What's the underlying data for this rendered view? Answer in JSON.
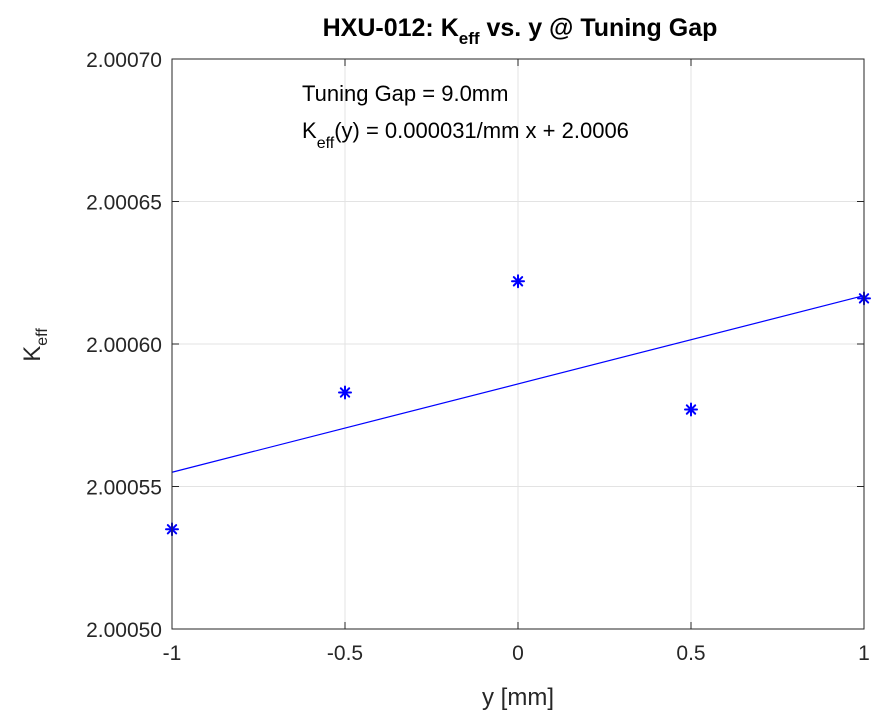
{
  "chart_data": {
    "type": "scatter",
    "title": {
      "main": "HXU-012: K",
      "sub": "eff",
      "rest": " vs. y @ Tuning Gap"
    },
    "xlabel": "y [mm]",
    "ylabel": {
      "main": "K",
      "sub": "eff"
    },
    "xlim": [
      -1,
      1
    ],
    "ylim": [
      2.0005,
      2.0007
    ],
    "xticks": [
      -1,
      -0.5,
      0,
      0.5,
      1
    ],
    "xtick_labels": [
      "-1",
      "-0.5",
      "0",
      "0.5",
      "1"
    ],
    "yticks": [
      2.0005,
      2.00055,
      2.0006,
      2.00065,
      2.0007
    ],
    "ytick_labels": [
      "2.00050",
      "2.00055",
      "2.00060",
      "2.00065",
      "2.00070"
    ],
    "grid": true,
    "series": [
      {
        "marker": "asterisk",
        "color": "#0000ff",
        "x": [
          -1,
          -0.5,
          0,
          0.5,
          1
        ],
        "y": [
          2.000535,
          2.000583,
          2.000622,
          2.000577,
          2.000616
        ]
      }
    ],
    "fit_line": {
      "color": "#0000ff",
      "x": [
        -1,
        1
      ],
      "y": [
        2.000555,
        2.000617
      ]
    },
    "annotation": {
      "line1": "Tuning Gap = 9.0mm",
      "line2_main": "K",
      "line2_sub": "eff",
      "line2_rest": "(y) = 0.000031/mm x + 2.0006"
    }
  }
}
